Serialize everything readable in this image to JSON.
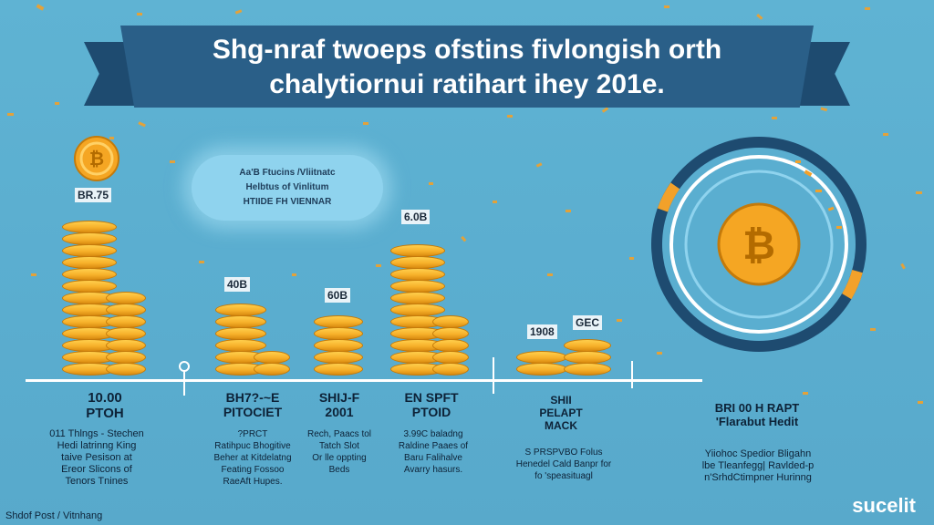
{
  "banner": {
    "line1": "Shg-nraf twoeps ofstins fivlongish orth",
    "line2": "chalytiornui ratihart ihey 201e."
  },
  "cloud": {
    "line1": "Aa'B Ftucins /Vliitnatc",
    "line2": "Helbtus of Vinlitum",
    "line3": "HTIIDE FH VIENNAR"
  },
  "columns": [
    {
      "value": "BR.75",
      "label": "10.00\nPTOH",
      "desc": "011 Thlngs - Stechen\nHedi latrinng King\ntaive Pesison at\nEreor Slicons of\nTenors Tnines"
    },
    {
      "value": "40B",
      "label": "BH7?-~E\nPITOCIET",
      "desc": "?PRCT\nRatihpuc Bhogitive\nBeher at Kitdelatng\nFeating Fossoo\nRaeAft Hupes."
    },
    {
      "value": "60B",
      "label": "SHIJ-F\n2001",
      "desc": "Rech, Paacs tol\nTatch Slot\nOr lle oppting\nBeds"
    },
    {
      "value": "6.0B",
      "label": "EN SPFT\nPTOID",
      "desc": "3.99C baladng\nRaldine Paaes of\nBaru Falihalve\nAvarry hasurs."
    },
    {
      "value": "1908",
      "value2": "GEC",
      "label": "SHII\nPELAPT\nMACK",
      "desc": "S PRSPVBO Folus\nHenedel Cald Banpr for\nfo 'speasituagl"
    },
    {
      "label": "BRI 00 H RAPT\n'Flarabut Hedit",
      "desc": "Yiiohoc Spedior Bligahn\nlbe Tleanfegg| Ravlded-p\nn'SrhdCtimpner Hurinng"
    }
  ],
  "footer": "Shdof Post / Vitnhang",
  "brand": "sucelit",
  "colors": {
    "background": "#5fb3d3",
    "banner": "#2a5f88",
    "coin": "#f7b12a",
    "dial_ring": "#1e4b70"
  }
}
